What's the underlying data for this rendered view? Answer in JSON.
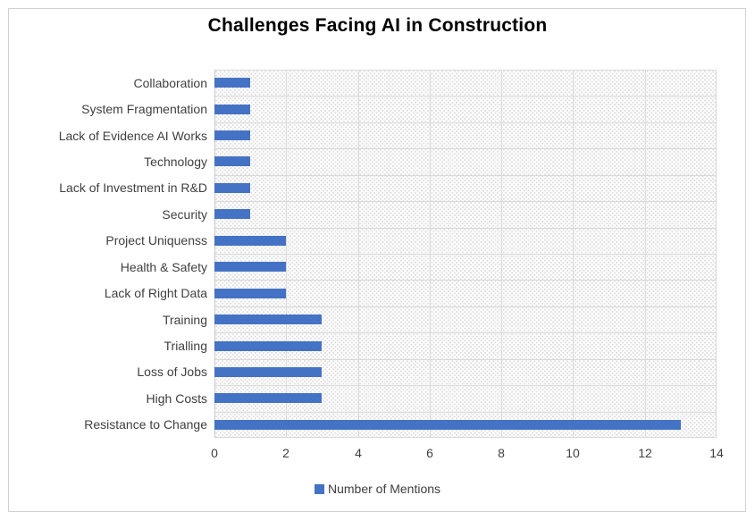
{
  "title": "Challenges Facing AI in Construction",
  "colors": {
    "bar": "#4472C4",
    "gridline": "#D9D9D9",
    "pattern_dot": "#DCDCDC",
    "frame_border": "#D2D2D2",
    "axis_text": "#3F3F3F",
    "title_text": "#000000"
  },
  "chart_data": {
    "type": "bar",
    "orientation": "horizontal",
    "title": "Challenges Facing AI in Construction",
    "xlabel": "",
    "ylabel": "",
    "categories": [
      "Collaboration",
      "System Fragmentation",
      "Lack of Evidence AI Works",
      "Technology",
      "Lack of Investment in R&D",
      "Security",
      "Project Uniquenss",
      "Health & Safety",
      "Lack of Right Data",
      "Training",
      "Trialling",
      "Loss of Jobs",
      "High Costs",
      "Resistance to Change"
    ],
    "values": [
      1,
      1,
      1,
      1,
      1,
      1,
      2,
      2,
      2,
      3,
      3,
      3,
      3,
      13
    ],
    "xlim": [
      0,
      14
    ],
    "x_ticks": [
      0,
      2,
      4,
      6,
      8,
      10,
      12,
      14
    ],
    "grid": true,
    "plot_background": "textured dot pattern",
    "legend": {
      "label": "Number of Mentions",
      "position": "bottom",
      "color": "#4472C4"
    }
  }
}
